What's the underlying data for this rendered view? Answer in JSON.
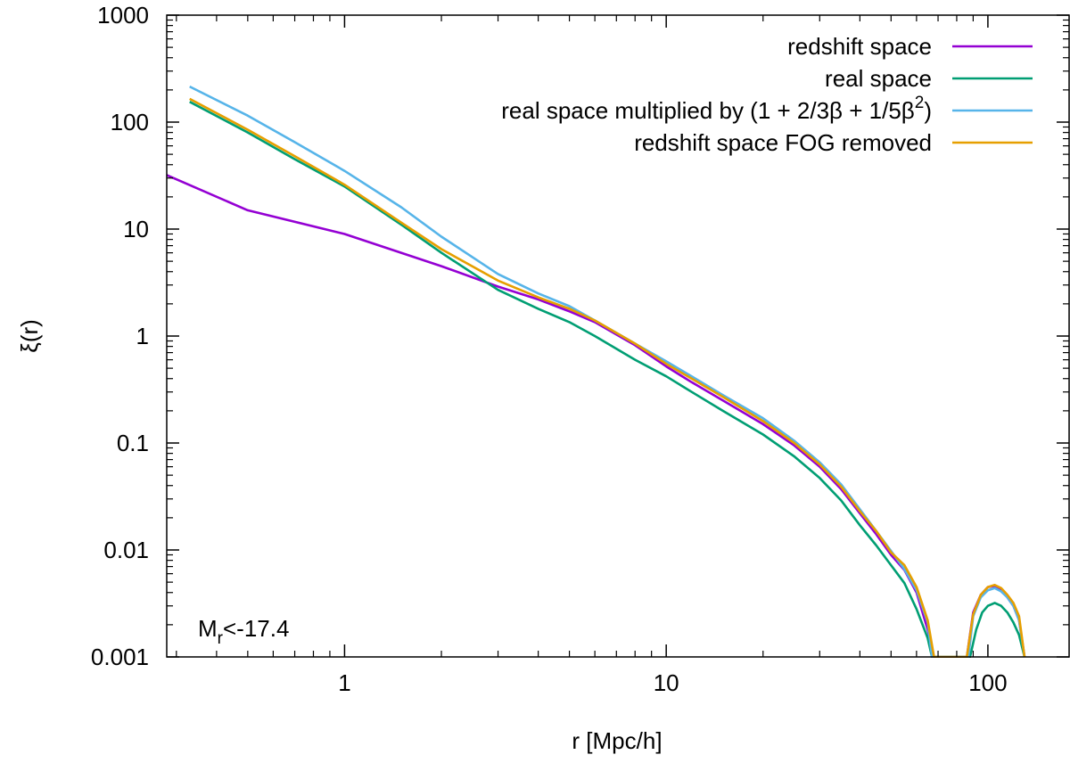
{
  "chart_data": {
    "type": "line",
    "xlabel": "r [Mpc/h]",
    "ylabel": "ξ(r)",
    "xscale": "log",
    "yscale": "log",
    "xlim": [
      0.28,
      180
    ],
    "ylim": [
      0.001,
      1000
    ],
    "xticks": [
      1,
      10,
      100
    ],
    "xtick_labels": [
      "1",
      "10",
      "100"
    ],
    "yticks": [
      1000,
      100,
      10,
      1,
      0.1,
      0.01,
      0.001
    ],
    "ytick_labels": [
      "1000",
      "100",
      "10",
      "1",
      "0.1",
      "0.01",
      "0.001"
    ],
    "grid": false,
    "legend_position": "top-right",
    "annotation": {
      "base": "M",
      "sub": "r",
      "rest": "<-17.4"
    },
    "series": [
      {
        "name": "redshift space",
        "color": "#9400d3",
        "x": [
          0.28,
          0.5,
          1,
          2,
          3,
          4,
          5,
          6,
          8,
          10,
          12,
          15,
          20,
          25,
          30,
          35,
          40,
          45,
          50,
          55,
          60,
          65,
          68,
          86,
          90,
          95,
          100,
          105,
          110,
          115,
          120,
          125,
          130
        ],
        "y": [
          32,
          15,
          9,
          4.5,
          2.9,
          2.2,
          1.7,
          1.35,
          0.82,
          0.52,
          0.37,
          0.25,
          0.15,
          0.095,
          0.06,
          0.037,
          0.022,
          0.014,
          0.009,
          0.0065,
          0.004,
          0.0018,
          0.001,
          0.001,
          0.0026,
          0.0038,
          0.0045,
          0.0046,
          0.0042,
          0.0036,
          0.003,
          0.0022,
          0.001
        ]
      },
      {
        "name": "real space",
        "color": "#009e73",
        "x": [
          0.33,
          0.5,
          0.7,
          1,
          1.5,
          2,
          3,
          4,
          5,
          6,
          8,
          10,
          12,
          15,
          20,
          25,
          30,
          35,
          40,
          45,
          50,
          55,
          60,
          65,
          67,
          88,
          92,
          96,
          100,
          105,
          110,
          115,
          120,
          125,
          130
        ],
        "y": [
          155,
          80,
          45,
          25,
          11,
          6,
          2.7,
          1.8,
          1.35,
          1.0,
          0.6,
          0.42,
          0.3,
          0.2,
          0.12,
          0.075,
          0.047,
          0.029,
          0.017,
          0.011,
          0.0072,
          0.0049,
          0.0028,
          0.0015,
          0.001,
          0.001,
          0.0018,
          0.0026,
          0.003,
          0.0032,
          0.003,
          0.0026,
          0.0021,
          0.0016,
          0.001
        ]
      },
      {
        "name": "real space multiplied by (1 + 2/3β + 1/5β²)",
        "color": "#56b4e9",
        "x": [
          0.33,
          0.5,
          0.7,
          1,
          1.5,
          2,
          3,
          4,
          5,
          6,
          8,
          10,
          12,
          15,
          20,
          25,
          30,
          35,
          40,
          45,
          50,
          55,
          60,
          65,
          67,
          87,
          90,
          95,
          100,
          105,
          110,
          115,
          120,
          125,
          130
        ],
        "y": [
          215,
          115,
          65,
          35,
          16,
          8.5,
          3.8,
          2.5,
          1.9,
          1.4,
          0.85,
          0.58,
          0.42,
          0.28,
          0.17,
          0.105,
          0.066,
          0.041,
          0.024,
          0.015,
          0.0098,
          0.0066,
          0.0042,
          0.0021,
          0.001,
          0.001,
          0.0024,
          0.0036,
          0.0042,
          0.0044,
          0.0041,
          0.0036,
          0.003,
          0.0022,
          0.001
        ]
      },
      {
        "name": "redshift space FOG removed",
        "color": "#e69f00",
        "x": [
          0.33,
          0.5,
          0.7,
          1,
          1.5,
          2,
          3,
          4,
          5,
          6,
          8,
          10,
          12,
          15,
          20,
          25,
          30,
          35,
          40,
          45,
          50,
          55,
          60,
          65,
          68,
          86,
          90,
          95,
          100,
          105,
          110,
          115,
          120,
          125,
          130
        ],
        "y": [
          165,
          85,
          48,
          26,
          11.5,
          6.5,
          3.3,
          2.3,
          1.8,
          1.4,
          0.85,
          0.55,
          0.4,
          0.27,
          0.16,
          0.1,
          0.063,
          0.039,
          0.023,
          0.015,
          0.0095,
          0.0072,
          0.0045,
          0.0022,
          0.001,
          0.001,
          0.0025,
          0.0038,
          0.0045,
          0.0047,
          0.0044,
          0.0038,
          0.0032,
          0.0024,
          0.001
        ]
      }
    ]
  }
}
